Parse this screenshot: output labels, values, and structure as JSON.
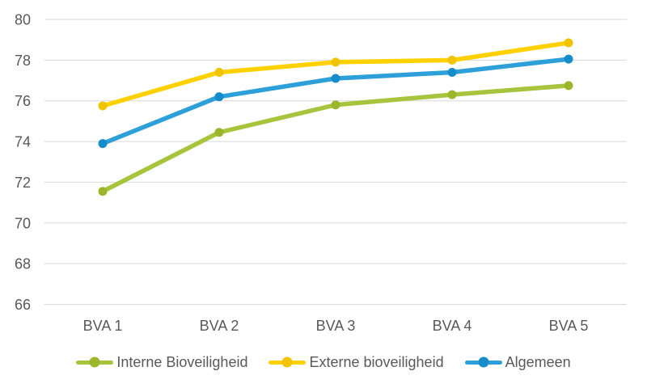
{
  "chart_data": {
    "type": "line",
    "title": "",
    "xlabel": "",
    "ylabel": "",
    "categories": [
      "BVA 1",
      "BVA 2",
      "BVA 3",
      "BVA 4",
      "BVA 5"
    ],
    "series": [
      {
        "name": "Interne Bioveiligheid",
        "values": [
          71.55,
          74.45,
          75.8,
          76.3,
          76.75
        ],
        "line_color": "#A8C43C",
        "marker_color": "#9CB62B"
      },
      {
        "name": "Externe bioveiligheid",
        "values": [
          75.75,
          77.4,
          77.9,
          78.0,
          78.85
        ],
        "line_color": "#FFD100",
        "marker_color": "#F2C400"
      },
      {
        "name": "Algemeen",
        "values": [
          73.9,
          76.2,
          77.1,
          77.4,
          78.05
        ],
        "line_color": "#2D9FD9",
        "marker_color": "#178CCB"
      }
    ],
    "ylim": [
      66,
      80
    ],
    "ytick_step": 2,
    "ytick_labels": [
      "66",
      "68",
      "70",
      "72",
      "74",
      "76",
      "78",
      "80"
    ],
    "grid": "horizontal",
    "legend_position": "bottom",
    "gridline_color": "#D9D9D9",
    "axis_text_color": "#595959",
    "background_color": "#FFFFFF"
  }
}
